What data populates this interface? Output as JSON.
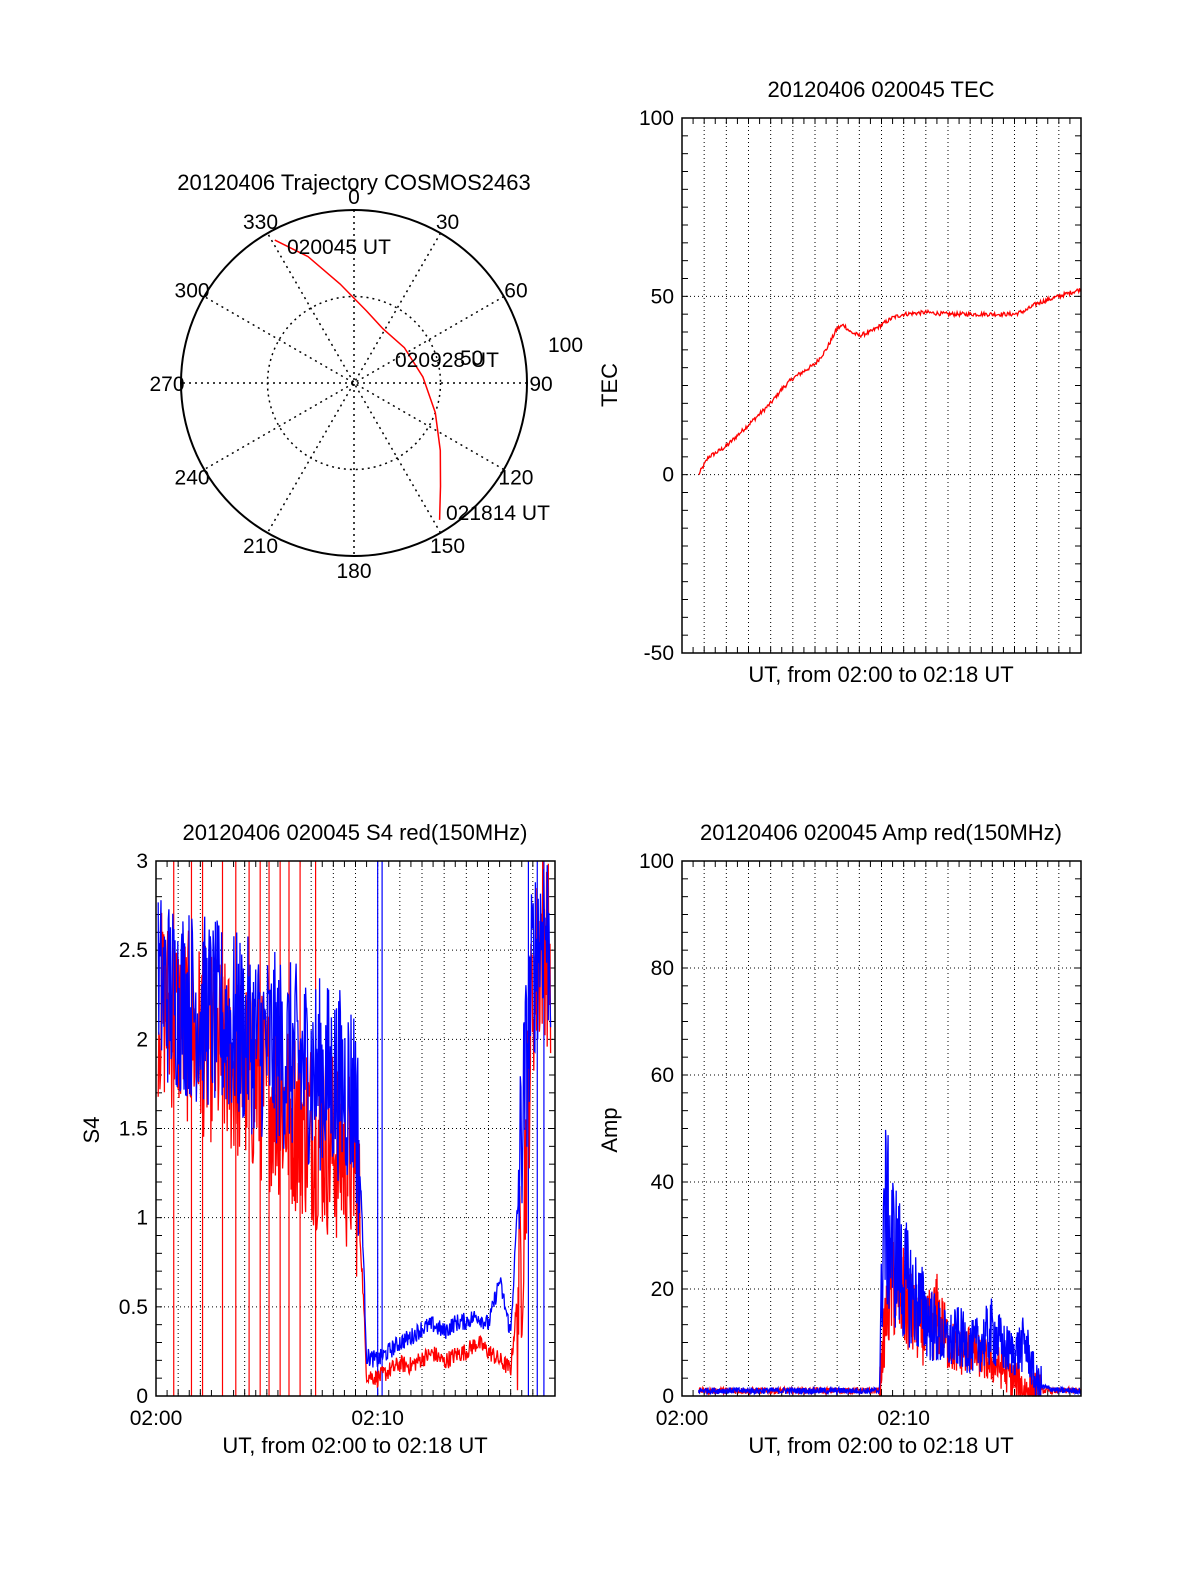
{
  "chart_data": [
    {
      "type": "polar",
      "title": "20120406 Trajectory COSMOS2463",
      "azimuth_labels": [
        "0",
        "30",
        "60",
        "90",
        "120",
        "150",
        "180",
        "210",
        "240",
        "270",
        "300",
        "330"
      ],
      "radial_labels": [
        "50",
        "100"
      ],
      "elevation_range": [
        0,
        90
      ],
      "grid": true,
      "series": [
        {
          "color": "#ff0000",
          "points": [
            {
              "az": 331,
              "el": 5
            },
            {
              "az": 340,
              "el": 20
            },
            {
              "az": 352,
              "el": 38
            },
            {
              "az": 10,
              "el": 52
            },
            {
              "az": 28,
              "el": 58
            },
            {
              "az": 55,
              "el": 58
            },
            {
              "az": 85,
              "el": 54
            },
            {
              "az": 110,
              "el": 45
            },
            {
              "az": 128,
              "el": 33
            },
            {
              "az": 140,
              "el": 20
            },
            {
              "az": 148,
              "el": 6
            }
          ]
        }
      ],
      "annotations": {
        "start": "020045 UT",
        "mid": "020928 UT",
        "end": "021814 UT"
      }
    },
    {
      "type": "line",
      "title": "20120406 020045 TEC",
      "xlabel": "UT, from 02:00 to 02:18 UT",
      "ylabel": "TEC",
      "xlim": [
        0,
        18
      ],
      "ylim": [
        -50,
        100
      ],
      "y_ticks": [
        "-50",
        "0",
        "50",
        "100"
      ],
      "grid": true,
      "series": [
        {
          "color": "#ff0000",
          "x": [
            0.75,
            1.2,
            1.5,
            2.0,
            2.5,
            3.0,
            3.5,
            4.0,
            4.5,
            5.0,
            5.5,
            6.0,
            6.5,
            7.0,
            7.3,
            7.6,
            8.0,
            8.5,
            9.0,
            9.5,
            10.0,
            11.0,
            12.0,
            13.0,
            14.0,
            15.0,
            15.5,
            16.0,
            16.5,
            17.0,
            17.5,
            18.0
          ],
          "y": [
            0,
            5,
            6,
            8,
            11,
            14,
            17,
            20,
            24,
            27,
            29,
            31,
            35,
            41,
            42,
            40,
            39,
            40,
            42,
            44,
            45,
            45.5,
            45,
            45,
            45,
            45,
            46,
            48,
            49,
            50,
            51,
            52
          ]
        }
      ]
    },
    {
      "type": "line",
      "title": "20120406 020045 S4 red(150MHz)",
      "xlabel": "UT, from 02:00 to 02:18 UT",
      "ylabel": "S4",
      "xlim": [
        0,
        18
      ],
      "ylim": [
        0,
        3
      ],
      "x_ticks": [
        "02:00",
        "02:10"
      ],
      "y_ticks": [
        "0",
        "0.5",
        "1",
        "1.5",
        "2",
        "2.5",
        "3"
      ],
      "grid": true,
      "series": [
        {
          "color": "#ff0000",
          "x": [
            0.1,
            9.0,
            9.3,
            9.5,
            10.0,
            10.5,
            11.0,
            11.5,
            12.0,
            12.5,
            13.0,
            13.5,
            14.0,
            14.5,
            15.0,
            15.5,
            16.0,
            16.5,
            17.0,
            17.5,
            17.8
          ],
          "y": [
            2.2,
            1.3,
            0.7,
            0.12,
            0.1,
            0.14,
            0.18,
            0.17,
            0.21,
            0.24,
            0.19,
            0.23,
            0.25,
            0.3,
            0.25,
            0.2,
            0.15,
            0.8,
            2.3,
            2.6,
            2.4
          ]
        },
        {
          "color": "#0000ff",
          "x": [
            0.1,
            9.0,
            9.3,
            9.5,
            10.0,
            10.5,
            11.0,
            11.5,
            12.0,
            12.5,
            13.0,
            13.5,
            14.0,
            14.5,
            15.0,
            15.5,
            16.0,
            16.5,
            17.0,
            17.5,
            17.8
          ],
          "y": [
            2.3,
            1.7,
            1.0,
            0.22,
            0.2,
            0.25,
            0.3,
            0.33,
            0.38,
            0.4,
            0.36,
            0.41,
            0.42,
            0.45,
            0.4,
            0.65,
            0.35,
            1.5,
            2.4,
            2.7,
            2.5
          ]
        }
      ]
    },
    {
      "type": "line",
      "title": "20120406 020045 Amp red(150MHz)",
      "xlabel": "UT, from 02:00 to 02:18 UT",
      "ylabel": "Amp",
      "xlim": [
        0,
        18
      ],
      "ylim": [
        0,
        100
      ],
      "x_ticks": [
        "02:00",
        "02:10"
      ],
      "y_ticks": [
        "0",
        "20",
        "40",
        "60",
        "80",
        "100"
      ],
      "grid": true,
      "series": [
        {
          "color": "#ff0000",
          "x": [
            0.75,
            4.0,
            8.9,
            9.2,
            9.5,
            10.0,
            10.5,
            11.0,
            11.5,
            12.0,
            12.5,
            13.0,
            13.5,
            14.0,
            14.5,
            15.0,
            15.5,
            16.0,
            17.0,
            18.0
          ],
          "y": [
            1,
            1,
            1,
            15,
            22,
            18,
            14,
            12,
            15,
            10,
            8,
            9,
            7,
            6,
            5,
            3,
            1,
            1,
            1,
            1
          ]
        },
        {
          "color": "#0000ff",
          "x": [
            0.75,
            4.0,
            8.9,
            9.1,
            9.5,
            10.0,
            10.5,
            11.0,
            11.5,
            12.0,
            12.5,
            13.0,
            13.5,
            14.0,
            14.5,
            15.0,
            15.5,
            16.0,
            17.0,
            18.0
          ],
          "y": [
            1,
            1,
            1,
            35,
            28,
            22,
            18,
            15,
            12,
            10,
            11,
            9,
            10,
            12,
            9,
            8,
            10,
            2,
            1,
            1
          ]
        }
      ]
    }
  ]
}
